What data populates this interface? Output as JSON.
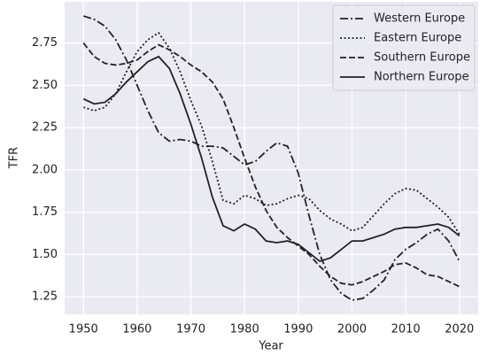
{
  "chart_data": {
    "type": "line",
    "xlabel": "Year",
    "ylabel": "TFR",
    "x": [
      1950,
      1952,
      1954,
      1956,
      1958,
      1960,
      1962,
      1964,
      1966,
      1968,
      1970,
      1972,
      1974,
      1976,
      1978,
      1980,
      1982,
      1984,
      1986,
      1988,
      1990,
      1992,
      1994,
      1996,
      1998,
      2000,
      2002,
      2004,
      2006,
      2008,
      2010,
      2012,
      2014,
      2016,
      2018,
      2020
    ],
    "series": [
      {
        "name": "Western Europe",
        "color": "#222222",
        "linestyle": "dashdot",
        "values": [
          2.91,
          2.89,
          2.85,
          2.77,
          2.65,
          2.5,
          2.35,
          2.22,
          2.17,
          2.18,
          2.17,
          2.14,
          2.14,
          2.13,
          2.08,
          2.03,
          2.05,
          2.11,
          2.16,
          2.14,
          1.98,
          1.73,
          1.5,
          1.35,
          1.27,
          1.23,
          1.24,
          1.29,
          1.35,
          1.47,
          1.53,
          1.57,
          1.62,
          1.65,
          1.58,
          1.46
        ]
      },
      {
        "name": "Eastern Europe",
        "color": "#222222",
        "linestyle": "dotted",
        "values": [
          2.37,
          2.35,
          2.37,
          2.45,
          2.58,
          2.7,
          2.77,
          2.81,
          2.72,
          2.58,
          2.41,
          2.26,
          2.05,
          1.82,
          1.8,
          1.85,
          1.83,
          1.79,
          1.8,
          1.83,
          1.85,
          1.83,
          1.76,
          1.71,
          1.68,
          1.64,
          1.66,
          1.73,
          1.8,
          1.86,
          1.89,
          1.88,
          1.83,
          1.78,
          1.72,
          1.62
        ]
      },
      {
        "name": "Southern Europe",
        "color": "#222222",
        "linestyle": "dashed",
        "values": [
          2.75,
          2.67,
          2.63,
          2.62,
          2.63,
          2.65,
          2.7,
          2.74,
          2.71,
          2.67,
          2.62,
          2.58,
          2.52,
          2.42,
          2.25,
          2.07,
          1.9,
          1.76,
          1.66,
          1.6,
          1.55,
          1.5,
          1.43,
          1.37,
          1.33,
          1.32,
          1.34,
          1.37,
          1.4,
          1.44,
          1.45,
          1.42,
          1.38,
          1.37,
          1.34,
          1.31
        ]
      },
      {
        "name": "Northern Europe",
        "color": "#222222",
        "linestyle": "solid",
        "values": [
          2.42,
          2.39,
          2.4,
          2.45,
          2.52,
          2.58,
          2.64,
          2.67,
          2.6,
          2.45,
          2.27,
          2.07,
          1.84,
          1.67,
          1.64,
          1.68,
          1.65,
          1.58,
          1.57,
          1.58,
          1.56,
          1.51,
          1.46,
          1.48,
          1.53,
          1.58,
          1.58,
          1.6,
          1.62,
          1.65,
          1.66,
          1.66,
          1.67,
          1.68,
          1.66,
          1.61
        ]
      }
    ],
    "xlim": [
      1946.5,
      2023.5
    ],
    "xticks": [
      1950,
      1960,
      1970,
      1980,
      1990,
      2000,
      2010,
      2020
    ],
    "ylim": [
      1.146,
      2.994
    ],
    "yticks": [
      1.25,
      {
        "value": 1.5,
        "label": "1.50"
      },
      1.75,
      {
        "value": 2,
        "label": "2.00"
      },
      2.25,
      {
        "value": 2.5,
        "label": "2.50"
      },
      2.75
    ],
    "grid": true,
    "legend": "upper right"
  }
}
